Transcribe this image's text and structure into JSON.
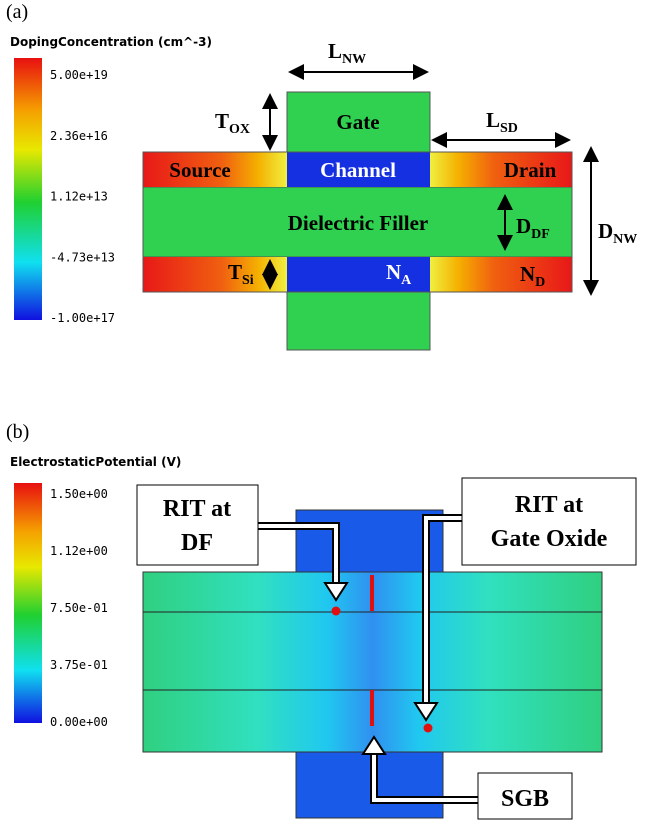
{
  "panel_a": {
    "label": "(a)",
    "colorbar": {
      "title": "DopingConcentration (cm^-3)",
      "ticks": [
        "5.00e+19",
        "2.36e+16",
        "1.12e+13",
        "-4.73e+13",
        "-1.00e+17"
      ]
    },
    "regions": {
      "gate": "Gate",
      "source": "Source",
      "channel": "Channel",
      "drain": "Drain",
      "filler": "Dielectric Filler"
    },
    "dims": {
      "l_nw": {
        "main": "L",
        "sub": "NW"
      },
      "t_ox": {
        "main": "T",
        "sub": "OX"
      },
      "l_sd": {
        "main": "L",
        "sub": "SD"
      },
      "d_df": {
        "main": "D",
        "sub": "DF"
      },
      "d_nw": {
        "main": "D",
        "sub": "NW"
      },
      "t_si": {
        "main": "T",
        "sub": "Si"
      },
      "n_a": {
        "main": "N",
        "sub": "A"
      },
      "n_d": {
        "main": "N",
        "sub": "D"
      }
    }
  },
  "panel_b": {
    "label": "(b)",
    "colorbar": {
      "title": "ElectrostaticPotential (V)",
      "ticks": [
        "1.50e+00",
        "1.12e+00",
        "7.50e-01",
        "3.75e-01",
        "0.00e+00"
      ]
    },
    "callouts": {
      "rit_df": [
        "RIT at",
        "DF"
      ],
      "rit_gox": [
        "RIT at",
        "Gate Oxide"
      ],
      "sgb": [
        "SGB"
      ]
    }
  }
}
